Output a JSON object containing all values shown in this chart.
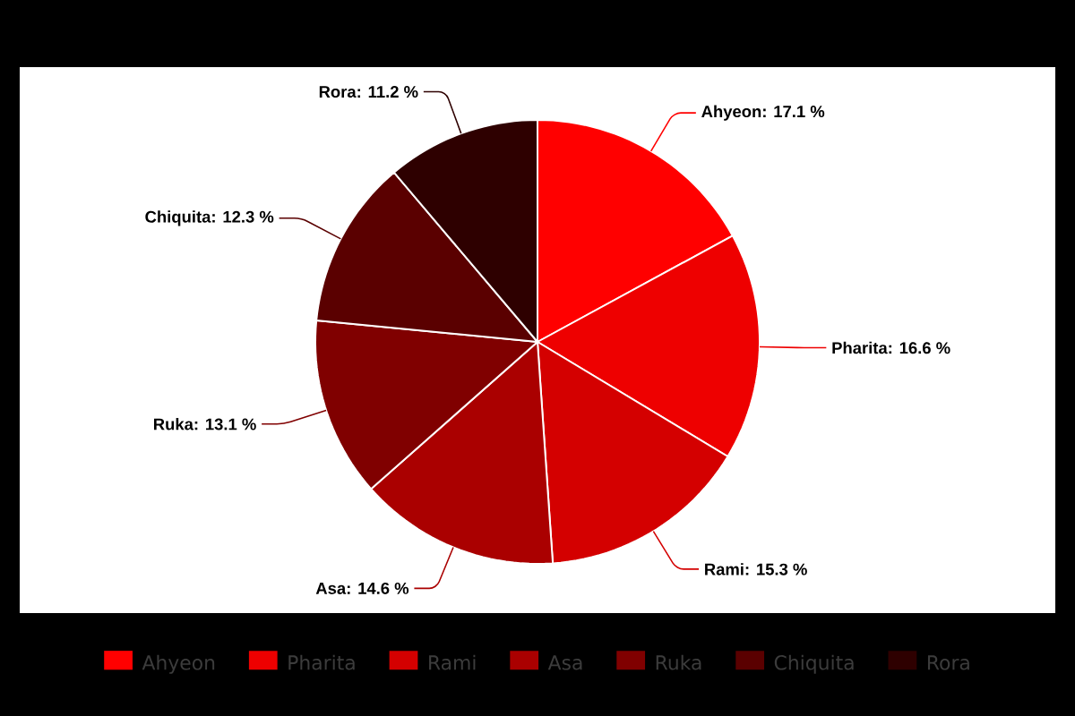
{
  "chart_data": {
    "type": "pie",
    "categories": [
      "Ahyeon",
      "Pharita",
      "Rami",
      "Asa",
      "Ruka",
      "Chiquita",
      "Rora"
    ],
    "values": [
      17.1,
      16.6,
      15.3,
      14.6,
      13.1,
      12.3,
      11.2
    ],
    "value_labels": [
      ": 17.1 %",
      ": 16.6 %",
      ": 15.3 %",
      ": 14.6 %",
      ": 13.1 %",
      ": 12.3 %",
      ": 11.2 %"
    ],
    "colors": [
      "#ff0000",
      "#ee0000",
      "#d40000",
      "#aa0000",
      "#800000",
      "#5a0000",
      "#2e0000"
    ],
    "legend": "bottom"
  }
}
